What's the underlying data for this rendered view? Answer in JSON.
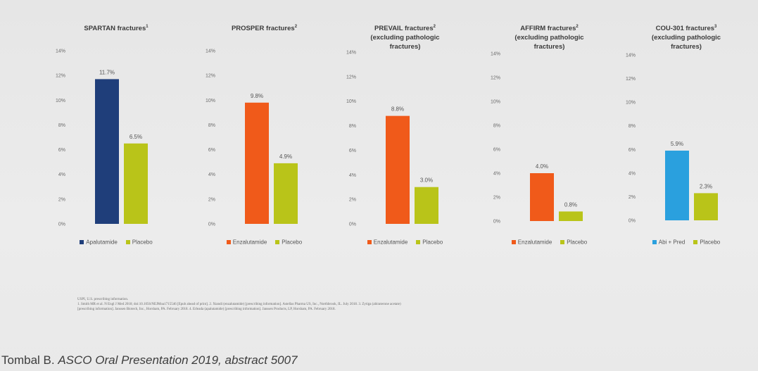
{
  "chart_data": [
    {
      "type": "bar",
      "title": "SPARTAN fractures",
      "title_ref": "1",
      "categories": [
        "Apalutamide",
        "Placebo"
      ],
      "values": [
        11.7,
        6.5
      ],
      "value_labels": [
        "11.7%",
        "6.5%"
      ],
      "colors": [
        "#1f3e7a",
        "#b9c419"
      ],
      "ylim": [
        0,
        14
      ],
      "yticks": [
        "0%",
        "2%",
        "4%",
        "6%",
        "8%",
        "10%",
        "12%",
        "14%"
      ],
      "legend_position": "bottom",
      "grid": false
    },
    {
      "type": "bar",
      "title": "PROSPER fractures",
      "title_ref": "2",
      "categories": [
        "Enzalutamide",
        "Placebo"
      ],
      "values": [
        9.8,
        4.9
      ],
      "value_labels": [
        "9.8%",
        "4.9%"
      ],
      "colors": [
        "#f05a1a",
        "#b9c419"
      ],
      "ylim": [
        0,
        14
      ],
      "yticks": [
        "0%",
        "2%",
        "4%",
        "6%",
        "8%",
        "10%",
        "12%",
        "14%"
      ],
      "legend_position": "bottom",
      "grid": false
    },
    {
      "type": "bar",
      "title": "PREVAIL fractures",
      "title_ref": "2",
      "subtitle": "(excluding pathologic fractures)",
      "categories": [
        "Enzalutamide",
        "Placebo"
      ],
      "values": [
        8.8,
        3.0
      ],
      "value_labels": [
        "8.8%",
        "3.0%"
      ],
      "colors": [
        "#f05a1a",
        "#b9c419"
      ],
      "ylim": [
        0,
        14
      ],
      "yticks": [
        "0%",
        "2%",
        "4%",
        "6%",
        "8%",
        "10%",
        "12%",
        "14%"
      ],
      "legend_position": "bottom",
      "grid": false
    },
    {
      "type": "bar",
      "title": "AFFIRM fractures",
      "title_ref": "2",
      "subtitle": "(excluding pathologic fractures)",
      "categories": [
        "Enzalutamide",
        "Placebo"
      ],
      "values": [
        4.0,
        0.8
      ],
      "value_labels": [
        "4.0%",
        "0.8%"
      ],
      "colors": [
        "#f05a1a",
        "#b9c419"
      ],
      "ylim": [
        0,
        14
      ],
      "yticks": [
        "0%",
        "2%",
        "4%",
        "6%",
        "8%",
        "10%",
        "12%",
        "14%"
      ],
      "legend_position": "bottom",
      "grid": false
    },
    {
      "type": "bar",
      "title": "COU-301 fractures",
      "title_ref": "3",
      "subtitle": "(excluding pathologic fractures)",
      "categories": [
        "Abi + Pred",
        "Placebo"
      ],
      "values": [
        5.9,
        2.3
      ],
      "value_labels": [
        "5.9%",
        "2.3%"
      ],
      "colors": [
        "#2aa0de",
        "#b9c419"
      ],
      "ylim": [
        0,
        14
      ],
      "yticks": [
        "0%",
        "2%",
        "4%",
        "6%",
        "8%",
        "10%",
        "12%",
        "14%"
      ],
      "legend_position": "bottom",
      "grid": false
    }
  ],
  "references": [
    "USPI, U.S. prescribing information.",
    "1. Smith MR et al. N Engl J Med 2018; doi:10.1056/NEJMoa1715546 [Epub ahead of print]. 2. Xtandi (enzalutamide) [prescribing information]. Astellas Pharma US, Inc., Northbrook, IL. July 2018. 3. Zytiga (abiraterone acetate)",
    "[prescribing information]. Janssen Biotech, Inc., Horsham, PA. February 2018. 4. Erleada (apalutamide) [prescribing information]. Janssen Products, LP, Horsham, PA. February 2018."
  ],
  "citation": {
    "author": "Tombal B.",
    "source": "ASCO Oral Presentation 2019, abstract 5007"
  }
}
